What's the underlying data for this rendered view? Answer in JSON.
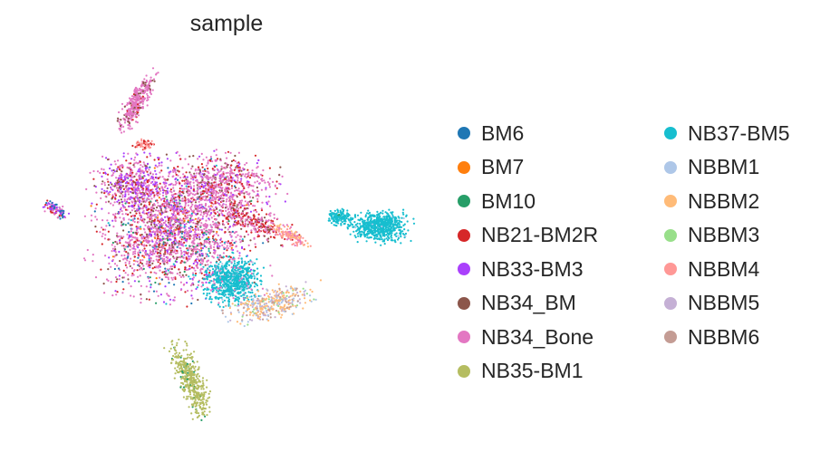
{
  "chart_data": {
    "type": "scatter",
    "title": "sample",
    "xlabel": "",
    "ylabel": "",
    "grid": false,
    "legend_position": "right",
    "series": [
      {
        "name": "BM6",
        "color": "#1f77b4"
      },
      {
        "name": "BM7",
        "color": "#ff7f0e"
      },
      {
        "name": "BM10",
        "color": "#279e68"
      },
      {
        "name": "NB21-BM2R",
        "color": "#d62728"
      },
      {
        "name": "NB33-BM3",
        "color": "#aa40fc"
      },
      {
        "name": "NB34_BM",
        "color": "#8c564b"
      },
      {
        "name": "NB34_Bone",
        "color": "#e377c2"
      },
      {
        "name": "NB35-BM1",
        "color": "#b5bd61"
      },
      {
        "name": "NB37-BM5",
        "color": "#17becf"
      },
      {
        "name": "NBBM1",
        "color": "#aec7e8"
      },
      {
        "name": "NBBM2",
        "color": "#ffbb78"
      },
      {
        "name": "NBBM3",
        "color": "#98df8a"
      },
      {
        "name": "NBBM4",
        "color": "#ff9896"
      },
      {
        "name": "NBBM5",
        "color": "#c5b0d5"
      },
      {
        "name": "NBBM6",
        "color": "#c49c94"
      }
    ]
  }
}
